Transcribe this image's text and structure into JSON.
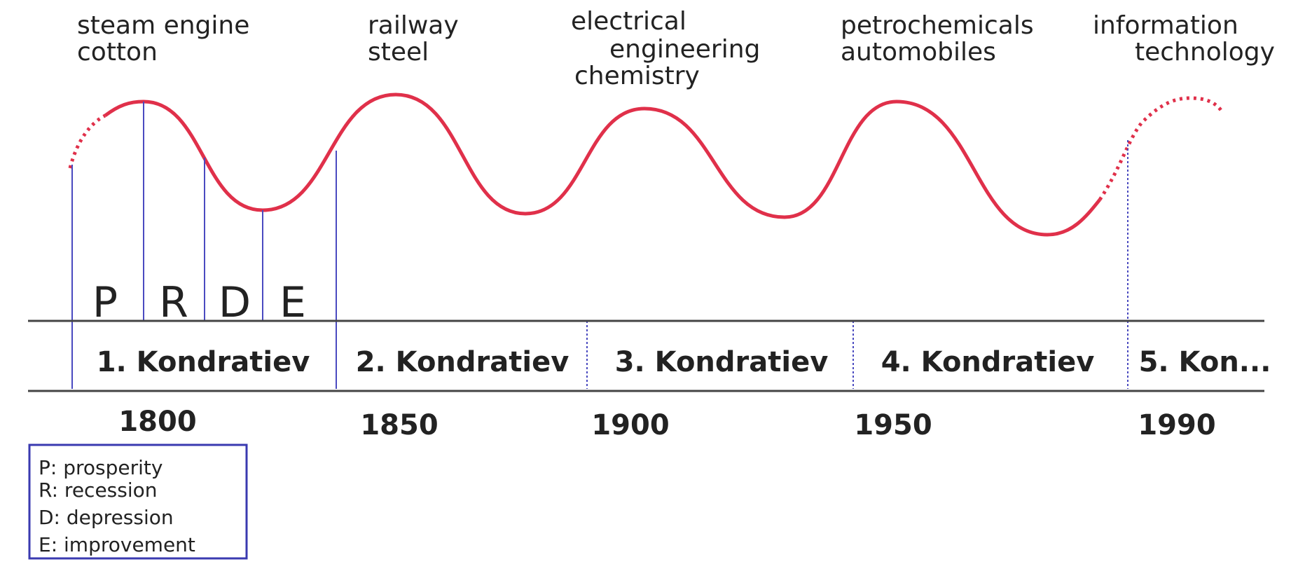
{
  "eras": [
    {
      "lines": [
        "steam engine",
        "cotton"
      ]
    },
    {
      "lines": [
        "railway",
        "steel"
      ]
    },
    {
      "lines": [
        "electrical",
        "engineering",
        "chemistry"
      ]
    },
    {
      "lines": [
        "petrochemicals",
        "automobiles"
      ]
    },
    {
      "lines": [
        "information",
        "technology"
      ]
    }
  ],
  "phases": [
    "P",
    "R",
    "D",
    "E"
  ],
  "cycles": [
    "1. Kondratiev",
    "2. Kondratiev",
    "3. Kondratiev",
    "4. Kondratiev",
    "5. Kon..."
  ],
  "years": [
    "1800",
    "1850",
    "1900",
    "1950",
    "1990"
  ],
  "legend": [
    "P: prosperity",
    "R: recession",
    "D: depression",
    "E: improvement"
  ]
}
